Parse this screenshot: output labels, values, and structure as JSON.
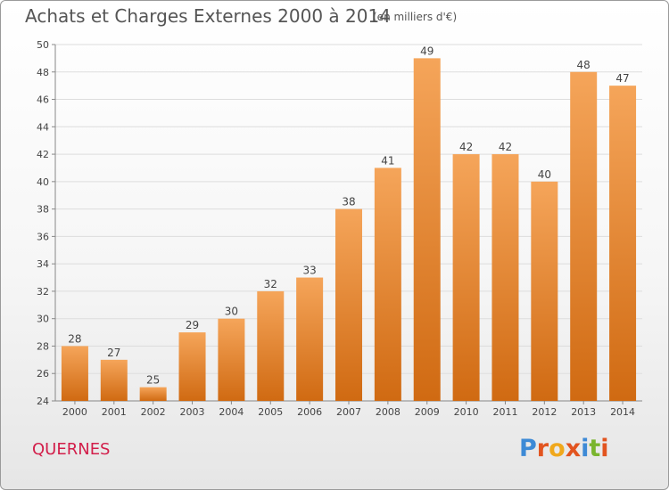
{
  "header": {
    "title": "Achats et Charges Externes 2000 à 2014",
    "unit": "(en milliers d'€)"
  },
  "footer": {
    "commune": "QUERNES",
    "brand": "Proxiti"
  },
  "colors": {
    "bar_top": "#f5a55a",
    "bar_bottom": "#d06a12",
    "commune": "#d21e4a",
    "brand_letters": [
      "#3d8ad6",
      "#e2541f",
      "#f0a81c",
      "#e2541f",
      "#3d8ad6",
      "#7ab52e",
      "#e2541f"
    ]
  },
  "chart_data": {
    "type": "bar",
    "title": "Achats et Charges Externes 2000 à 2014",
    "subtitle": "(en milliers d'€)",
    "categories": [
      "2000",
      "2001",
      "2002",
      "2003",
      "2004",
      "2005",
      "2006",
      "2007",
      "2008",
      "2009",
      "2010",
      "2011",
      "2012",
      "2013",
      "2014"
    ],
    "values": [
      28,
      27,
      25,
      29,
      30,
      32,
      33,
      38,
      41,
      49,
      42,
      42,
      40,
      48,
      47
    ],
    "ylim": [
      24,
      50
    ],
    "yticks": [
      24,
      26,
      28,
      30,
      32,
      34,
      36,
      38,
      40,
      42,
      44,
      46,
      48,
      50
    ],
    "grid": true,
    "legend": "none"
  }
}
